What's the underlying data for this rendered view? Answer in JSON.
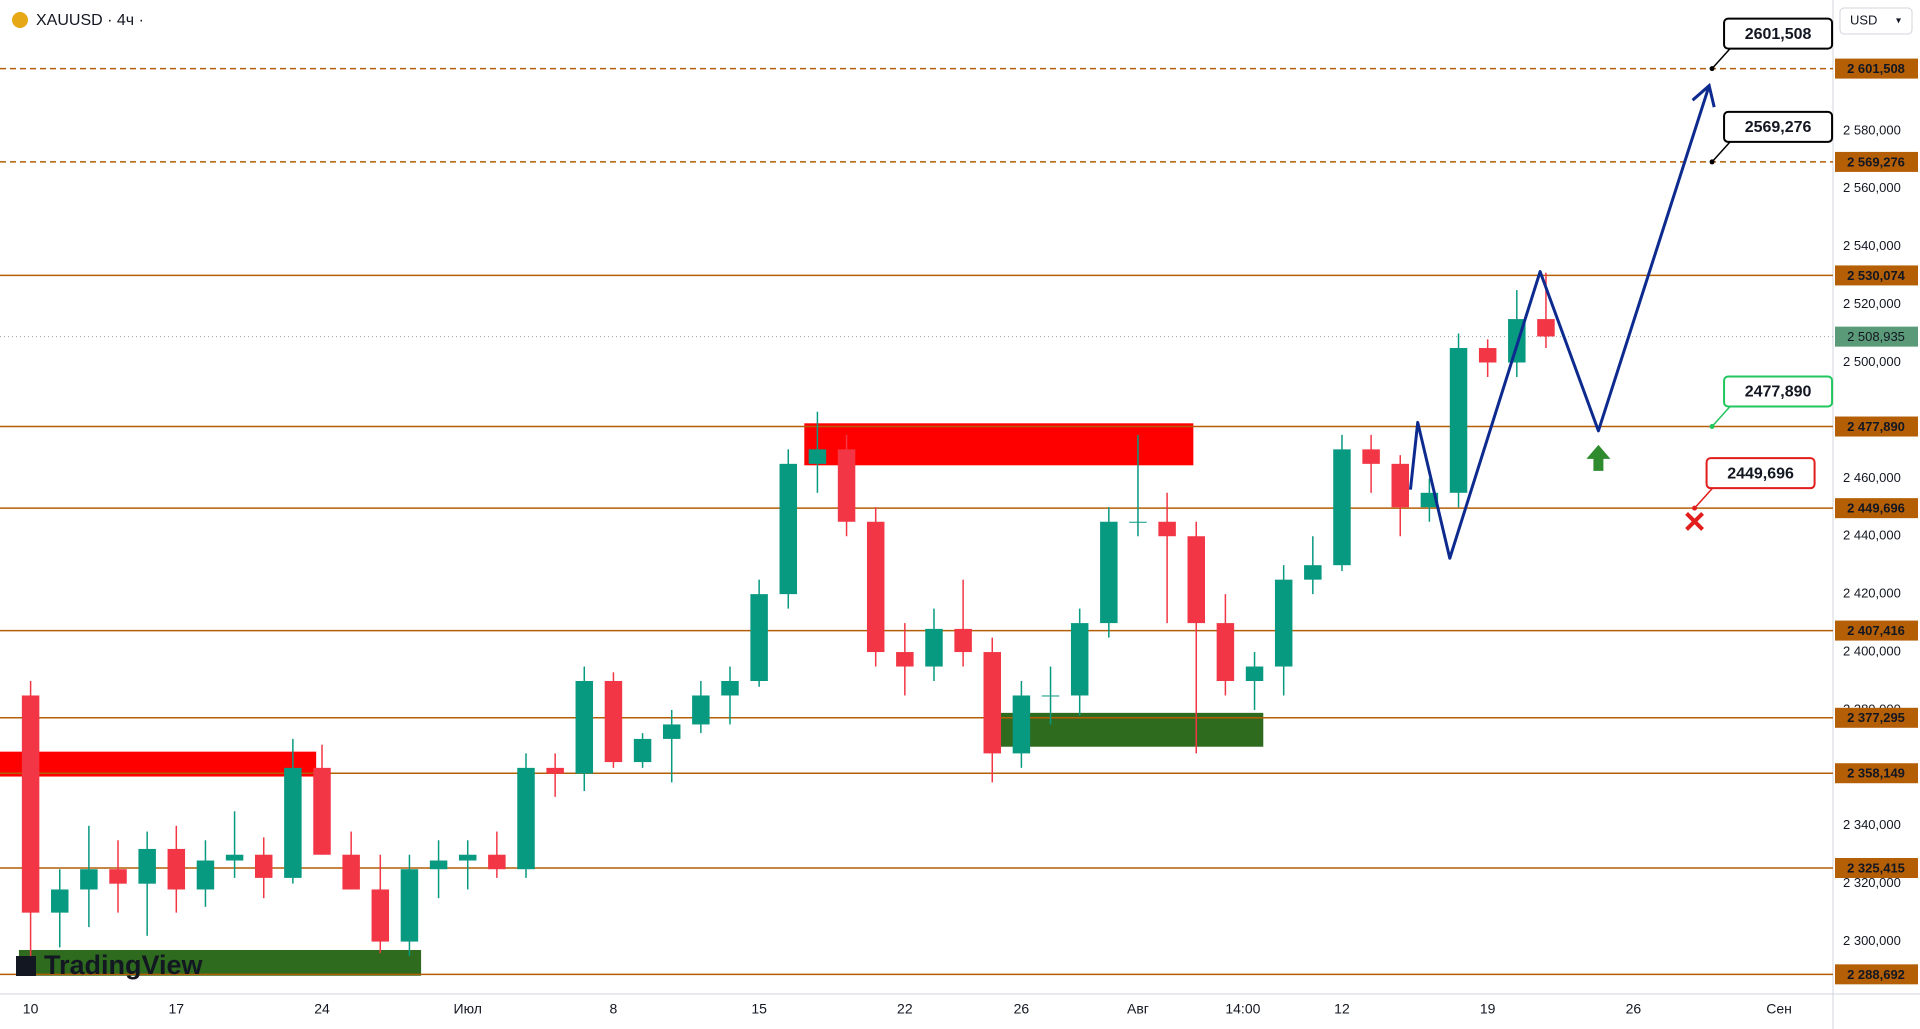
{
  "chart_data": {
    "type": "candlestick",
    "title": "XAUUSD · 4ч ·",
    "currency": "USD",
    "logo": "TradingView",
    "up_color": "#089981",
    "down_color": "#f23645",
    "x": [
      0,
      1,
      2,
      3,
      4,
      5,
      6,
      7,
      8,
      9,
      10,
      11,
      12,
      13,
      14,
      15,
      16,
      17,
      18,
      19,
      20,
      21,
      22,
      23,
      24,
      25,
      26,
      27,
      28,
      29,
      30,
      31,
      32,
      33,
      34,
      35,
      36,
      37,
      38,
      39,
      40,
      41,
      42,
      43,
      44,
      45,
      46,
      47,
      48,
      49,
      50,
      51,
      52
    ],
    "open": [
      2385,
      2310,
      2318,
      2325,
      2320,
      2332,
      2318,
      2328,
      2330,
      2322,
      2360,
      2330,
      2318,
      2300,
      2325,
      2328,
      2330,
      2325,
      2360,
      2358,
      2390,
      2362,
      2370,
      2375,
      2385,
      2390,
      2420,
      2465,
      2470,
      2445,
      2400,
      2395,
      2408,
      2400,
      2365,
      2385,
      2385,
      2410,
      2445,
      2445,
      2440,
      2410,
      2390,
      2395,
      2425,
      2430,
      2470,
      2465,
      2450,
      2455,
      2505,
      2500,
      2515
    ],
    "high": [
      2390,
      2325,
      2340,
      2335,
      2338,
      2340,
      2335,
      2345,
      2336,
      2370,
      2368,
      2338,
      2330,
      2330,
      2335,
      2335,
      2338,
      2365,
      2365,
      2395,
      2393,
      2372,
      2380,
      2390,
      2395,
      2425,
      2470,
      2483,
      2475,
      2450,
      2410,
      2415,
      2425,
      2405,
      2390,
      2395,
      2415,
      2450,
      2475,
      2455,
      2445,
      2420,
      2400,
      2430,
      2440,
      2475,
      2475,
      2468,
      2460,
      2510,
      2508,
      2525,
      2531
    ],
    "low": [
      2295,
      2298,
      2305,
      2310,
      2302,
      2310,
      2312,
      2322,
      2315,
      2320,
      2330,
      2318,
      2296,
      2295,
      2315,
      2318,
      2322,
      2322,
      2350,
      2352,
      2360,
      2360,
      2355,
      2372,
      2375,
      2388,
      2415,
      2455,
      2440,
      2395,
      2385,
      2390,
      2395,
      2355,
      2360,
      2375,
      2378,
      2405,
      2440,
      2410,
      2365,
      2385,
      2380,
      2385,
      2420,
      2428,
      2455,
      2440,
      2445,
      2450,
      2495,
      2495,
      2505
    ],
    "close": [
      2310,
      2318,
      2325,
      2320,
      2332,
      2318,
      2328,
      2330,
      2322,
      2360,
      2330,
      2318,
      2300,
      2325,
      2328,
      2330,
      2325,
      2360,
      2358,
      2390,
      2362,
      2370,
      2375,
      2385,
      2390,
      2420,
      2465,
      2470,
      2445,
      2400,
      2395,
      2408,
      2400,
      2365,
      2385,
      2385,
      2410,
      2445,
      2445,
      2440,
      2410,
      2390,
      2395,
      2425,
      2430,
      2470,
      2465,
      2450,
      2455,
      2505,
      2500,
      2515,
      2509
    ],
    "xlim": [
      -1.05,
      61.85
    ],
    "xticks": [
      {
        "value": 0,
        "label": "10"
      },
      {
        "value": 5,
        "label": "17"
      },
      {
        "value": 10,
        "label": "24"
      },
      {
        "value": 15,
        "label": "Июл"
      },
      {
        "value": 20,
        "label": "8"
      },
      {
        "value": 25,
        "label": "15"
      },
      {
        "value": 30,
        "label": "22"
      },
      {
        "value": 34,
        "label": "26"
      },
      {
        "value": 38,
        "label": "Авг"
      },
      {
        "value": 41.6,
        "label": "14:00"
      },
      {
        "value": 45,
        "label": "12"
      },
      {
        "value": 50,
        "label": "19"
      },
      {
        "value": 55,
        "label": "26"
      },
      {
        "value": 60,
        "label": "Сен"
      }
    ],
    "ylim": [
      2281.9,
      2625.2
    ],
    "yticks": [
      {
        "value": 2300,
        "label": "2 300,000"
      },
      {
        "value": 2320,
        "label": "2 320,000"
      },
      {
        "value": 2340,
        "label": "2 340,000"
      },
      {
        "value": 2380,
        "label": "2 380,000"
      },
      {
        "value": 2400,
        "label": "2 400,000"
      },
      {
        "value": 2420,
        "label": "2 420,000"
      },
      {
        "value": 2440,
        "label": "2 440,000"
      },
      {
        "value": 2460,
        "label": "2 460,000"
      },
      {
        "value": 2500,
        "label": "2 500,000"
      },
      {
        "value": 2520,
        "label": "2 520,000"
      },
      {
        "value": 2540,
        "label": "2 540,000"
      },
      {
        "value": 2560,
        "label": "2 560,000"
      },
      {
        "value": 2580,
        "label": "2 580,000"
      }
    ],
    "grid": false,
    "level_color": "#b45f06",
    "levels": [
      {
        "value": 2601.508,
        "label": "2 601,508",
        "style": "dashed"
      },
      {
        "value": 2569.276,
        "label": "2 569,276",
        "style": "dashed"
      },
      {
        "value": 2530.074,
        "label": "2 530,074",
        "style": "solid"
      },
      {
        "value": 2477.89,
        "label": "2 477,890",
        "style": "solid"
      },
      {
        "value": 2449.696,
        "label": "2 449,696",
        "style": "solid"
      },
      {
        "value": 2407.416,
        "label": "2 407,416",
        "style": "solid"
      },
      {
        "value": 2377.295,
        "label": "2 377,295",
        "style": "solid"
      },
      {
        "value": 2358.149,
        "label": "2 358,149",
        "style": "solid"
      },
      {
        "value": 2325.415,
        "label": "2 325,415",
        "style": "solid"
      },
      {
        "value": 2288.692,
        "label": "2 288,692",
        "style": "solid"
      }
    ],
    "last_price": {
      "value": 2508.935,
      "label": "2 508,935",
      "color": "#5b9a78"
    },
    "zones": [
      {
        "x": [
          -1.05,
          9.8
        ],
        "y": [
          2357,
          2365.6
        ],
        "color": "#ff0000"
      },
      {
        "x": [
          26.55,
          39.9
        ],
        "y": [
          2464.5,
          2479
        ],
        "color": "#ff0000"
      },
      {
        "x": [
          33.3,
          42.3
        ],
        "y": [
          2367.3,
          2379
        ],
        "color": "#2e6b1f"
      },
      {
        "x": [
          -0.4,
          13.4
        ],
        "y": [
          2288.2,
          2297.1
        ],
        "color": "#2e6b1f"
      }
    ],
    "projection": {
      "color": "#0d2a8f",
      "x": [
        47.35,
        47.6,
        48.7,
        51.8,
        53.8,
        57.6
      ],
      "y": [
        2456.1,
        2479.3,
        2432.4,
        2531.4,
        2476.4,
        2595.6
      ]
    },
    "callouts": [
      {
        "value": 2601.508,
        "label": "2601,508",
        "x": 57.7,
        "color": "#000000"
      },
      {
        "value": 2569.276,
        "label": "2569,276",
        "x": 57.7,
        "color": "#000000"
      },
      {
        "value": 2477.89,
        "label": "2477,890",
        "x": 57.7,
        "color": "#22c55e"
      },
      {
        "value": 2449.696,
        "label": "2449,696",
        "x": 57.1,
        "color": "#e11d1d"
      }
    ],
    "markers": [
      {
        "type": "arrow-up",
        "x": 53.8,
        "y": 2466.7,
        "color": "#2e8b2e"
      },
      {
        "type": "cross",
        "x": 57.1,
        "y": 2445.1,
        "color": "#e11d1d"
      }
    ]
  }
}
